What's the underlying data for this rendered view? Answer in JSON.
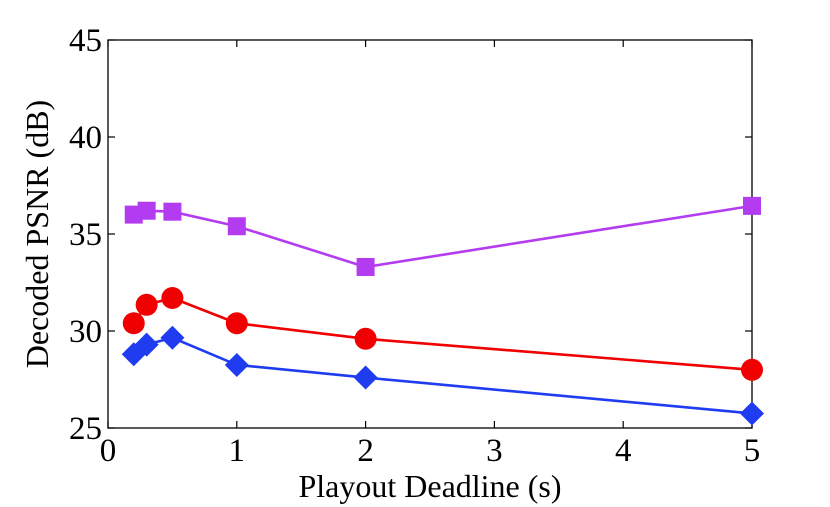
{
  "chart_data": {
    "type": "line",
    "title": "",
    "xlabel": "Playout Deadline (s)",
    "ylabel": "Decoded PSNR (dB)",
    "xlim": [
      0,
      5
    ],
    "ylim": [
      25,
      45
    ],
    "xticks": [
      "0",
      "1",
      "2",
      "3",
      "4",
      "5"
    ],
    "yticks": [
      "25",
      "30",
      "35",
      "40",
      "45"
    ],
    "grid": false,
    "legend": "none",
    "x": [
      0.2,
      0.3,
      0.5,
      1,
      2,
      5
    ],
    "series": [
      {
        "marker": "square",
        "color": "#b43cf0",
        "values": [
          36.0,
          36.2,
          36.15,
          35.4,
          33.3,
          36.45
        ]
      },
      {
        "marker": "circle",
        "color": "#f00000",
        "values": [
          30.4,
          31.35,
          31.7,
          30.4,
          29.6,
          28.0
        ]
      },
      {
        "marker": "diamond",
        "color": "#1f3cf0",
        "values": [
          28.8,
          29.3,
          29.65,
          28.25,
          27.6,
          25.75
        ]
      }
    ]
  }
}
